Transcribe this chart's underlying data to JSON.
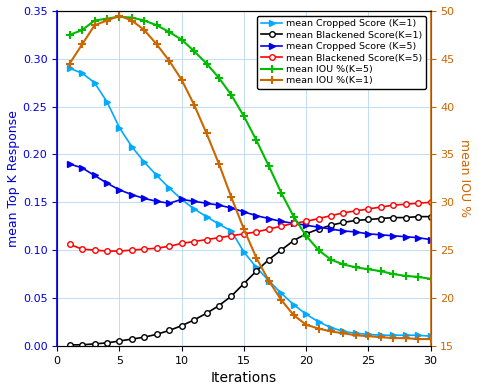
{
  "iterations": [
    1,
    2,
    3,
    4,
    5,
    6,
    7,
    8,
    9,
    10,
    11,
    12,
    13,
    14,
    15,
    16,
    17,
    18,
    19,
    20,
    21,
    22,
    23,
    24,
    25,
    26,
    27,
    28,
    29,
    30
  ],
  "cropped_k1": [
    0.29,
    0.285,
    0.275,
    0.255,
    0.228,
    0.208,
    0.192,
    0.178,
    0.165,
    0.153,
    0.143,
    0.135,
    0.127,
    0.12,
    0.098,
    0.082,
    0.068,
    0.055,
    0.043,
    0.033,
    0.025,
    0.019,
    0.015,
    0.013,
    0.012,
    0.011,
    0.011,
    0.011,
    0.011,
    0.01
  ],
  "blackened_k1": [
    0.001,
    0.001,
    0.002,
    0.003,
    0.005,
    0.007,
    0.009,
    0.012,
    0.016,
    0.021,
    0.027,
    0.034,
    0.042,
    0.052,
    0.065,
    0.078,
    0.09,
    0.1,
    0.11,
    0.117,
    0.122,
    0.126,
    0.129,
    0.131,
    0.132,
    0.133,
    0.134,
    0.134,
    0.135,
    0.135
  ],
  "cropped_k5": [
    0.19,
    0.186,
    0.178,
    0.17,
    0.163,
    0.158,
    0.154,
    0.151,
    0.149,
    0.153,
    0.151,
    0.149,
    0.147,
    0.144,
    0.14,
    0.136,
    0.133,
    0.13,
    0.128,
    0.126,
    0.124,
    0.122,
    0.12,
    0.119,
    0.117,
    0.116,
    0.115,
    0.114,
    0.113,
    0.111
  ],
  "blackened_k5": [
    0.106,
    0.101,
    0.1,
    0.099,
    0.099,
    0.1,
    0.101,
    0.102,
    0.104,
    0.107,
    0.109,
    0.111,
    0.113,
    0.115,
    0.117,
    0.119,
    0.122,
    0.125,
    0.128,
    0.13,
    0.133,
    0.136,
    0.139,
    0.141,
    0.143,
    0.145,
    0.147,
    0.148,
    0.149,
    0.15
  ],
  "iou_k5": [
    47.5,
    48.0,
    49.0,
    49.2,
    49.4,
    49.3,
    49.0,
    48.5,
    47.8,
    47.0,
    45.8,
    44.5,
    43.0,
    41.2,
    39.0,
    36.5,
    33.8,
    31.0,
    28.5,
    26.5,
    25.0,
    24.0,
    23.5,
    23.2,
    23.0,
    22.8,
    22.5,
    22.3,
    22.2,
    22.0
  ],
  "iou_k1": [
    44.5,
    46.5,
    48.5,
    49.0,
    49.5,
    49.0,
    48.0,
    46.5,
    44.8,
    42.8,
    40.2,
    37.2,
    34.0,
    30.5,
    27.2,
    24.2,
    21.8,
    19.8,
    18.2,
    17.2,
    16.8,
    16.5,
    16.3,
    16.1,
    16.0,
    15.9,
    15.8,
    15.8,
    15.7,
    15.7
  ],
  "colors": {
    "cropped_k1": "#00AAFF",
    "blackened_k1": "#000000",
    "cropped_k5": "#0000EE",
    "blackened_k5": "#FF0000",
    "iou_k5": "#00BB00",
    "iou_k1": "#CC6600"
  },
  "left_ylabel": "mean Top K Response",
  "right_ylabel": "mean IOU %",
  "xlabel": "Iterations",
  "ylim_left": [
    0,
    0.35
  ],
  "ylim_right": [
    15,
    50
  ],
  "yticks_left": [
    0,
    0.05,
    0.1,
    0.15,
    0.2,
    0.25,
    0.3,
    0.35
  ],
  "yticks_right": [
    15,
    20,
    25,
    30,
    35,
    40,
    45,
    50
  ],
  "xticks": [
    0,
    5,
    10,
    15,
    20,
    25,
    30
  ],
  "xlim": [
    0,
    30
  ],
  "figsize": [
    4.78,
    3.92
  ],
  "dpi": 100
}
